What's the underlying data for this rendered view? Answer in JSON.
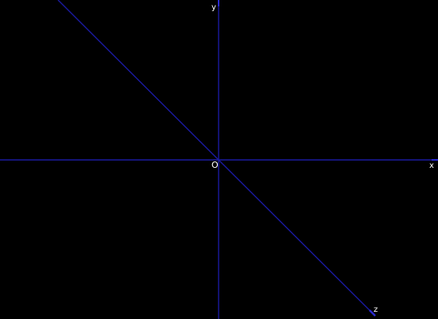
{
  "colors": {
    "background": "#000000",
    "axis_line": "#1a1aa0",
    "label_text": "#ffffff"
  },
  "axes": {
    "x_label": "x",
    "y_label": "y",
    "z_label": "z",
    "origin_label": "O"
  }
}
